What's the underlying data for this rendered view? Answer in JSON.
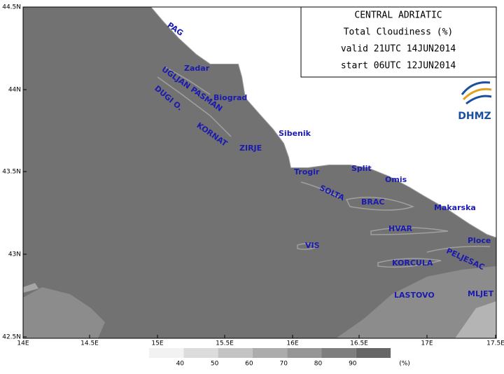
{
  "map": {
    "title_lines": [
      "CENTRAL ADRIATIC",
      "Total Cloudiness (%)",
      "valid 21UTC 14JUN2014",
      "start 06UTC 12JUN2014"
    ],
    "logo": "DHMZ",
    "lat_ticks": [
      "44.5N",
      "44N",
      "43.5N",
      "43N",
      "42.5N"
    ],
    "lon_ticks": [
      "14E",
      "14.5E",
      "15E",
      "15.5E",
      "16E",
      "16.5E",
      "17E",
      "17.5E"
    ],
    "places": [
      "PAG",
      "Zadar",
      "UGLJAN PASMAN",
      "Biograd",
      "DUGI O.",
      "KORNAT",
      "ZIRJE",
      "Sibenik",
      "Trogir",
      "Split",
      "Omis",
      "SOLTA",
      "BRAC",
      "Makarska",
      "HVAR",
      "Ploce",
      "VIS",
      "PELJESAC",
      "KORCULA",
      "LASTOVO",
      "MLJET"
    ],
    "legend": {
      "labels": [
        "40",
        "50",
        "60",
        "70",
        "80",
        "90"
      ],
      "unit": "(%)"
    }
  }
}
